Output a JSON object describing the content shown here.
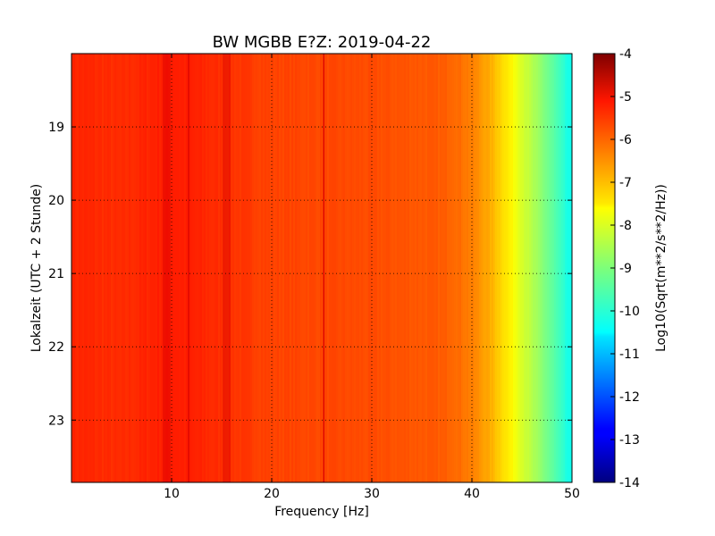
{
  "chart_data": {
    "type": "heatmap",
    "title": "BW MGBB E?Z: 2019-04-22",
    "xlabel": "Frequency [Hz]",
    "ylabel": "Lokalzeit (UTC + 2 Stunde)",
    "xlim": [
      0,
      50
    ],
    "ylim": [
      18.0,
      23.85
    ],
    "y_inverted": true,
    "grid": true,
    "x_ticks": [
      "10",
      "20",
      "30",
      "40",
      "50"
    ],
    "x_tick_values": [
      10,
      20,
      30,
      40,
      50
    ],
    "y_ticks": [
      "19",
      "20",
      "21",
      "22",
      "23"
    ],
    "y_tick_values": [
      19,
      20,
      21,
      22,
      23
    ],
    "colorbar": {
      "label": "Log10(Sqrt(m**2/s**2/Hz))",
      "range": [
        -14,
        -4
      ],
      "ticks": [
        "-4",
        "-5",
        "-6",
        "-7",
        "-8",
        "-9",
        "-10",
        "-11",
        "-12",
        "-13",
        "-14"
      ],
      "tick_values": [
        -4,
        -5,
        -6,
        -7,
        -8,
        -9,
        -10,
        -11,
        -12,
        -13,
        -14
      ],
      "colormap": "jet"
    },
    "spectrum_profile": {
      "frequency_hz": [
        0,
        5,
        10,
        20,
        30,
        35,
        38,
        40,
        42,
        44,
        46,
        48,
        49.5,
        50
      ],
      "log10_level": [
        -5.6,
        -5.7,
        -5.5,
        -5.9,
        -6.0,
        -6.1,
        -6.2,
        -6.5,
        -7.0,
        -7.7,
        -8.5,
        -9.3,
        -10.0,
        -10.2
      ]
    },
    "features": [
      {
        "frequency_hz": 25.2,
        "kind": "line"
      },
      {
        "frequency_hz": 9.5,
        "kind": "band"
      },
      {
        "frequency_hz": 15.5,
        "kind": "band"
      },
      {
        "frequency_hz": 11.7,
        "kind": "line"
      }
    ]
  }
}
